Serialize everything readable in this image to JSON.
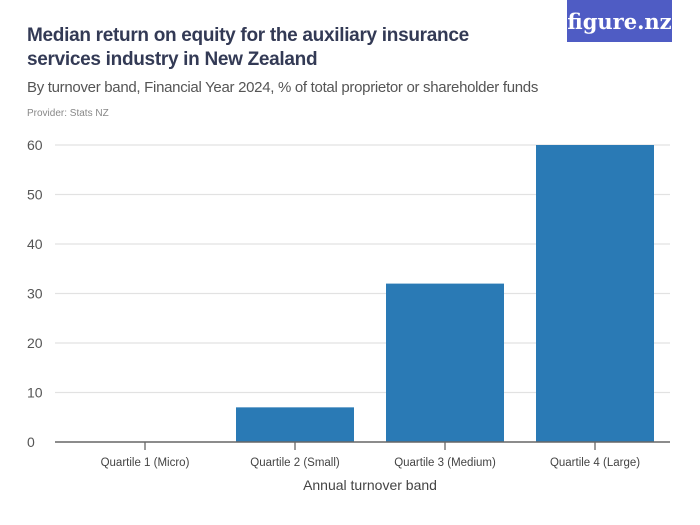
{
  "header": {
    "title": "Median return on equity for the auxiliary insurance services industry in New Zealand",
    "subtitle": "By turnover band, Financial Year 2024, % of total proprietor or shareholder funds",
    "provider": "Provider: Stats NZ",
    "logo": "figure.nz"
  },
  "chart_data": {
    "type": "bar",
    "categories": [
      "Quartile 1 (Micro)",
      "Quartile 2 (Small)",
      "Quartile 3 (Medium)",
      "Quartile 4 (Large)"
    ],
    "values": [
      0,
      7,
      32,
      60
    ],
    "xlabel": "Annual turnover band",
    "ylabel": "",
    "ylim": [
      0,
      60
    ],
    "yticks": [
      0,
      10,
      20,
      30,
      40,
      50,
      60
    ],
    "grid": true,
    "bar_color": "#2a7ab5"
  }
}
